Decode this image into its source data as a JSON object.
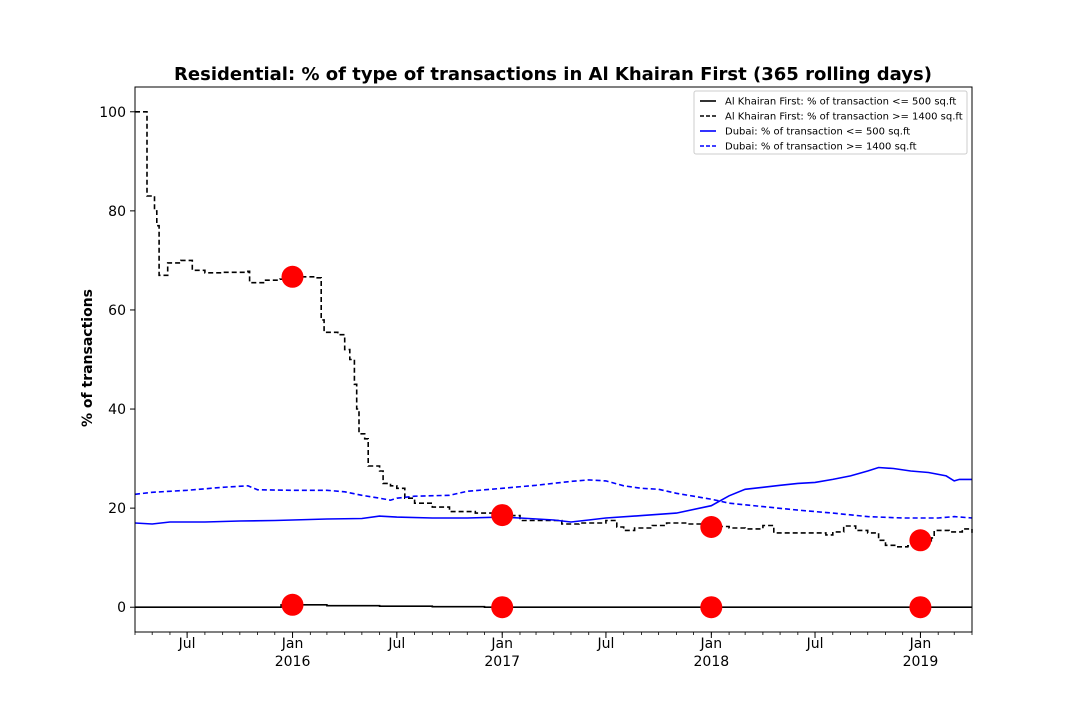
{
  "chart_data": {
    "type": "line",
    "title": "Residential: % of type of transactions in Al Khairan First (365 rolling days)",
    "xlabel": "",
    "ylabel": "% of transactions",
    "xlim": [
      "2015-04-01",
      "2019-04-01"
    ],
    "ylim": [
      -5,
      105
    ],
    "y_ticks": [
      0,
      20,
      40,
      60,
      80,
      100
    ],
    "x_ticks": [
      {
        "date": "2015-07-01",
        "label": "Jul",
        "sub": ""
      },
      {
        "date": "2016-01-01",
        "label": "Jan",
        "sub": "2016"
      },
      {
        "date": "2016-07-01",
        "label": "Jul",
        "sub": ""
      },
      {
        "date": "2017-01-01",
        "label": "Jan",
        "sub": "2017"
      },
      {
        "date": "2017-07-01",
        "label": "Jul",
        "sub": ""
      },
      {
        "date": "2018-01-01",
        "label": "Jan",
        "sub": "2018"
      },
      {
        "date": "2018-07-01",
        "label": "Jul",
        "sub": ""
      },
      {
        "date": "2019-01-01",
        "label": "Jan",
        "sub": "2019"
      }
    ],
    "grid": false,
    "legend_position": "top-right",
    "series": [
      {
        "name": "Al Khairan First: % of transaction <= 500 sq.ft",
        "color": "#000000",
        "dash": "solid",
        "step": true,
        "points": [
          [
            "2015-04-01",
            0
          ],
          [
            "2015-12-10",
            0
          ],
          [
            "2015-12-12",
            0.5
          ],
          [
            "2016-01-20",
            0.5
          ],
          [
            "2016-03-01",
            0.3
          ],
          [
            "2016-06-01",
            0.2
          ],
          [
            "2016-09-01",
            0.1
          ],
          [
            "2016-12-01",
            0
          ],
          [
            "2019-04-01",
            0
          ]
        ]
      },
      {
        "name": "Al Khairan First: % of transaction >= 1400 sq.ft",
        "color": "#000000",
        "dash": "dashed",
        "step": true,
        "points": [
          [
            "2015-04-01",
            100
          ],
          [
            "2015-04-21",
            100
          ],
          [
            "2015-04-22",
            83
          ],
          [
            "2015-05-02",
            83
          ],
          [
            "2015-05-05",
            80
          ],
          [
            "2015-05-09",
            77
          ],
          [
            "2015-05-13",
            67
          ],
          [
            "2015-05-26",
            67
          ],
          [
            "2015-05-28",
            69.5
          ],
          [
            "2015-06-20",
            70
          ],
          [
            "2015-07-10",
            68
          ],
          [
            "2015-08-01",
            67.5
          ],
          [
            "2015-09-01",
            67.6
          ],
          [
            "2015-10-15",
            67.8
          ],
          [
            "2015-10-18",
            65.5
          ],
          [
            "2015-11-15",
            66
          ],
          [
            "2015-12-10",
            66.2
          ],
          [
            "2016-01-01",
            66.7
          ],
          [
            "2016-02-10",
            66.5
          ],
          [
            "2016-02-20",
            58
          ],
          [
            "2016-02-25",
            55.5
          ],
          [
            "2016-03-20",
            55
          ],
          [
            "2016-04-01",
            52
          ],
          [
            "2016-04-10",
            50
          ],
          [
            "2016-04-18",
            45
          ],
          [
            "2016-04-22",
            40
          ],
          [
            "2016-04-26",
            35
          ],
          [
            "2016-05-06",
            34
          ],
          [
            "2016-05-12",
            28.5
          ],
          [
            "2016-06-01",
            27.5
          ],
          [
            "2016-06-07",
            25
          ],
          [
            "2016-06-20",
            24.5
          ],
          [
            "2016-07-01",
            24
          ],
          [
            "2016-07-15",
            22
          ],
          [
            "2016-08-01",
            21
          ],
          [
            "2016-09-01",
            20.2
          ],
          [
            "2016-10-01",
            19.3
          ],
          [
            "2016-11-15",
            19
          ],
          [
            "2017-01-01",
            18.5
          ],
          [
            "2017-02-01",
            17.5
          ],
          [
            "2017-03-15",
            17.5
          ],
          [
            "2017-04-15",
            16.8
          ],
          [
            "2017-05-15",
            17
          ],
          [
            "2017-07-01",
            17.5
          ],
          [
            "2017-07-20",
            16.2
          ],
          [
            "2017-08-01",
            15.5
          ],
          [
            "2017-08-20",
            16
          ],
          [
            "2017-09-20",
            16.5
          ],
          [
            "2017-10-15",
            17
          ],
          [
            "2017-11-20",
            16.8
          ],
          [
            "2018-01-01",
            16.3
          ],
          [
            "2018-02-01",
            16
          ],
          [
            "2018-03-01",
            15.8
          ],
          [
            "2018-04-01",
            16.5
          ],
          [
            "2018-04-20",
            15
          ],
          [
            "2018-06-01",
            15
          ],
          [
            "2018-07-20",
            14.6
          ],
          [
            "2018-08-01",
            15.2
          ],
          [
            "2018-08-20",
            16.4
          ],
          [
            "2018-09-10",
            15.5
          ],
          [
            "2018-10-01",
            15
          ],
          [
            "2018-10-20",
            13.5
          ],
          [
            "2018-11-01",
            12.5
          ],
          [
            "2018-11-20",
            12.2
          ],
          [
            "2018-12-10",
            12.4
          ],
          [
            "2018-12-25",
            13
          ],
          [
            "2019-01-01",
            13.4
          ],
          [
            "2019-01-20",
            14
          ],
          [
            "2019-01-25",
            15.5
          ],
          [
            "2019-02-20",
            15.2
          ],
          [
            "2019-03-15",
            15.8
          ],
          [
            "2019-04-01",
            15
          ]
        ]
      },
      {
        "name": "Dubai: % of transaction <= 500 sq.ft",
        "color": "#0000ff",
        "dash": "solid",
        "step": false,
        "points": [
          [
            "2015-04-01",
            17
          ],
          [
            "2015-05-01",
            16.8
          ],
          [
            "2015-06-01",
            17.2
          ],
          [
            "2015-08-01",
            17.2
          ],
          [
            "2015-10-01",
            17.4
          ],
          [
            "2015-12-01",
            17.5
          ],
          [
            "2016-01-01",
            17.6
          ],
          [
            "2016-03-01",
            17.8
          ],
          [
            "2016-05-01",
            17.9
          ],
          [
            "2016-06-01",
            18.4
          ],
          [
            "2016-07-01",
            18.2
          ],
          [
            "2016-09-01",
            18
          ],
          [
            "2016-11-01",
            18
          ],
          [
            "2017-01-01",
            18.2
          ],
          [
            "2017-02-01",
            18
          ],
          [
            "2017-04-01",
            17.6
          ],
          [
            "2017-05-01",
            17.2
          ],
          [
            "2017-06-01",
            17.6
          ],
          [
            "2017-07-01",
            18
          ],
          [
            "2017-09-01",
            18.5
          ],
          [
            "2017-11-01",
            19
          ],
          [
            "2018-01-01",
            20.5
          ],
          [
            "2018-02-01",
            22.5
          ],
          [
            "2018-03-01",
            23.8
          ],
          [
            "2018-04-01",
            24.2
          ],
          [
            "2018-05-01",
            24.6
          ],
          [
            "2018-06-01",
            25
          ],
          [
            "2018-07-01",
            25.2
          ],
          [
            "2018-08-01",
            25.8
          ],
          [
            "2018-09-01",
            26.5
          ],
          [
            "2018-10-01",
            27.5
          ],
          [
            "2018-10-20",
            28.2
          ],
          [
            "2018-11-15",
            28
          ],
          [
            "2018-12-15",
            27.5
          ],
          [
            "2019-01-15",
            27.2
          ],
          [
            "2019-02-15",
            26.5
          ],
          [
            "2019-03-01",
            25.5
          ],
          [
            "2019-03-10",
            25.8
          ],
          [
            "2019-04-01",
            25.8
          ]
        ]
      },
      {
        "name": "Dubai: % of transaction >= 1400 sq.ft",
        "color": "#0000ff",
        "dash": "dashed",
        "step": false,
        "points": [
          [
            "2015-04-01",
            22.8
          ],
          [
            "2015-05-01",
            23.2
          ],
          [
            "2015-07-01",
            23.6
          ],
          [
            "2015-09-01",
            24.2
          ],
          [
            "2015-10-15",
            24.5
          ],
          [
            "2015-11-01",
            23.7
          ],
          [
            "2016-01-01",
            23.6
          ],
          [
            "2016-03-01",
            23.6
          ],
          [
            "2016-04-01",
            23.3
          ],
          [
            "2016-05-01",
            22.6
          ],
          [
            "2016-06-01",
            22
          ],
          [
            "2016-06-20",
            21.6
          ],
          [
            "2016-07-01",
            22
          ],
          [
            "2016-08-01",
            22.4
          ],
          [
            "2016-10-01",
            22.6
          ],
          [
            "2016-11-01",
            23.4
          ],
          [
            "2017-01-01",
            24
          ],
          [
            "2017-03-01",
            24.6
          ],
          [
            "2017-05-01",
            25.4
          ],
          [
            "2017-06-01",
            25.7
          ],
          [
            "2017-07-01",
            25.5
          ],
          [
            "2017-08-01",
            24.5
          ],
          [
            "2017-09-01",
            24
          ],
          [
            "2017-10-01",
            23.8
          ],
          [
            "2017-11-01",
            23
          ],
          [
            "2017-12-01",
            22.4
          ],
          [
            "2018-01-01",
            21.8
          ],
          [
            "2018-02-01",
            21
          ],
          [
            "2018-04-01",
            20.3
          ],
          [
            "2018-06-01",
            19.6
          ],
          [
            "2018-08-01",
            19
          ],
          [
            "2018-10-01",
            18.3
          ],
          [
            "2018-12-01",
            18
          ],
          [
            "2019-02-01",
            18
          ],
          [
            "2019-03-01",
            18.3
          ],
          [
            "2019-04-01",
            18
          ]
        ]
      }
    ],
    "markers": {
      "color": "#ff0000",
      "points": [
        [
          "2016-01-01",
          66.7
        ],
        [
          "2016-01-01",
          0.5
        ],
        [
          "2017-01-01",
          18.6
        ],
        [
          "2017-01-01",
          0
        ],
        [
          "2018-01-01",
          16.2
        ],
        [
          "2018-01-01",
          0
        ],
        [
          "2019-01-01",
          13.5
        ],
        [
          "2019-01-01",
          0
        ]
      ]
    }
  }
}
